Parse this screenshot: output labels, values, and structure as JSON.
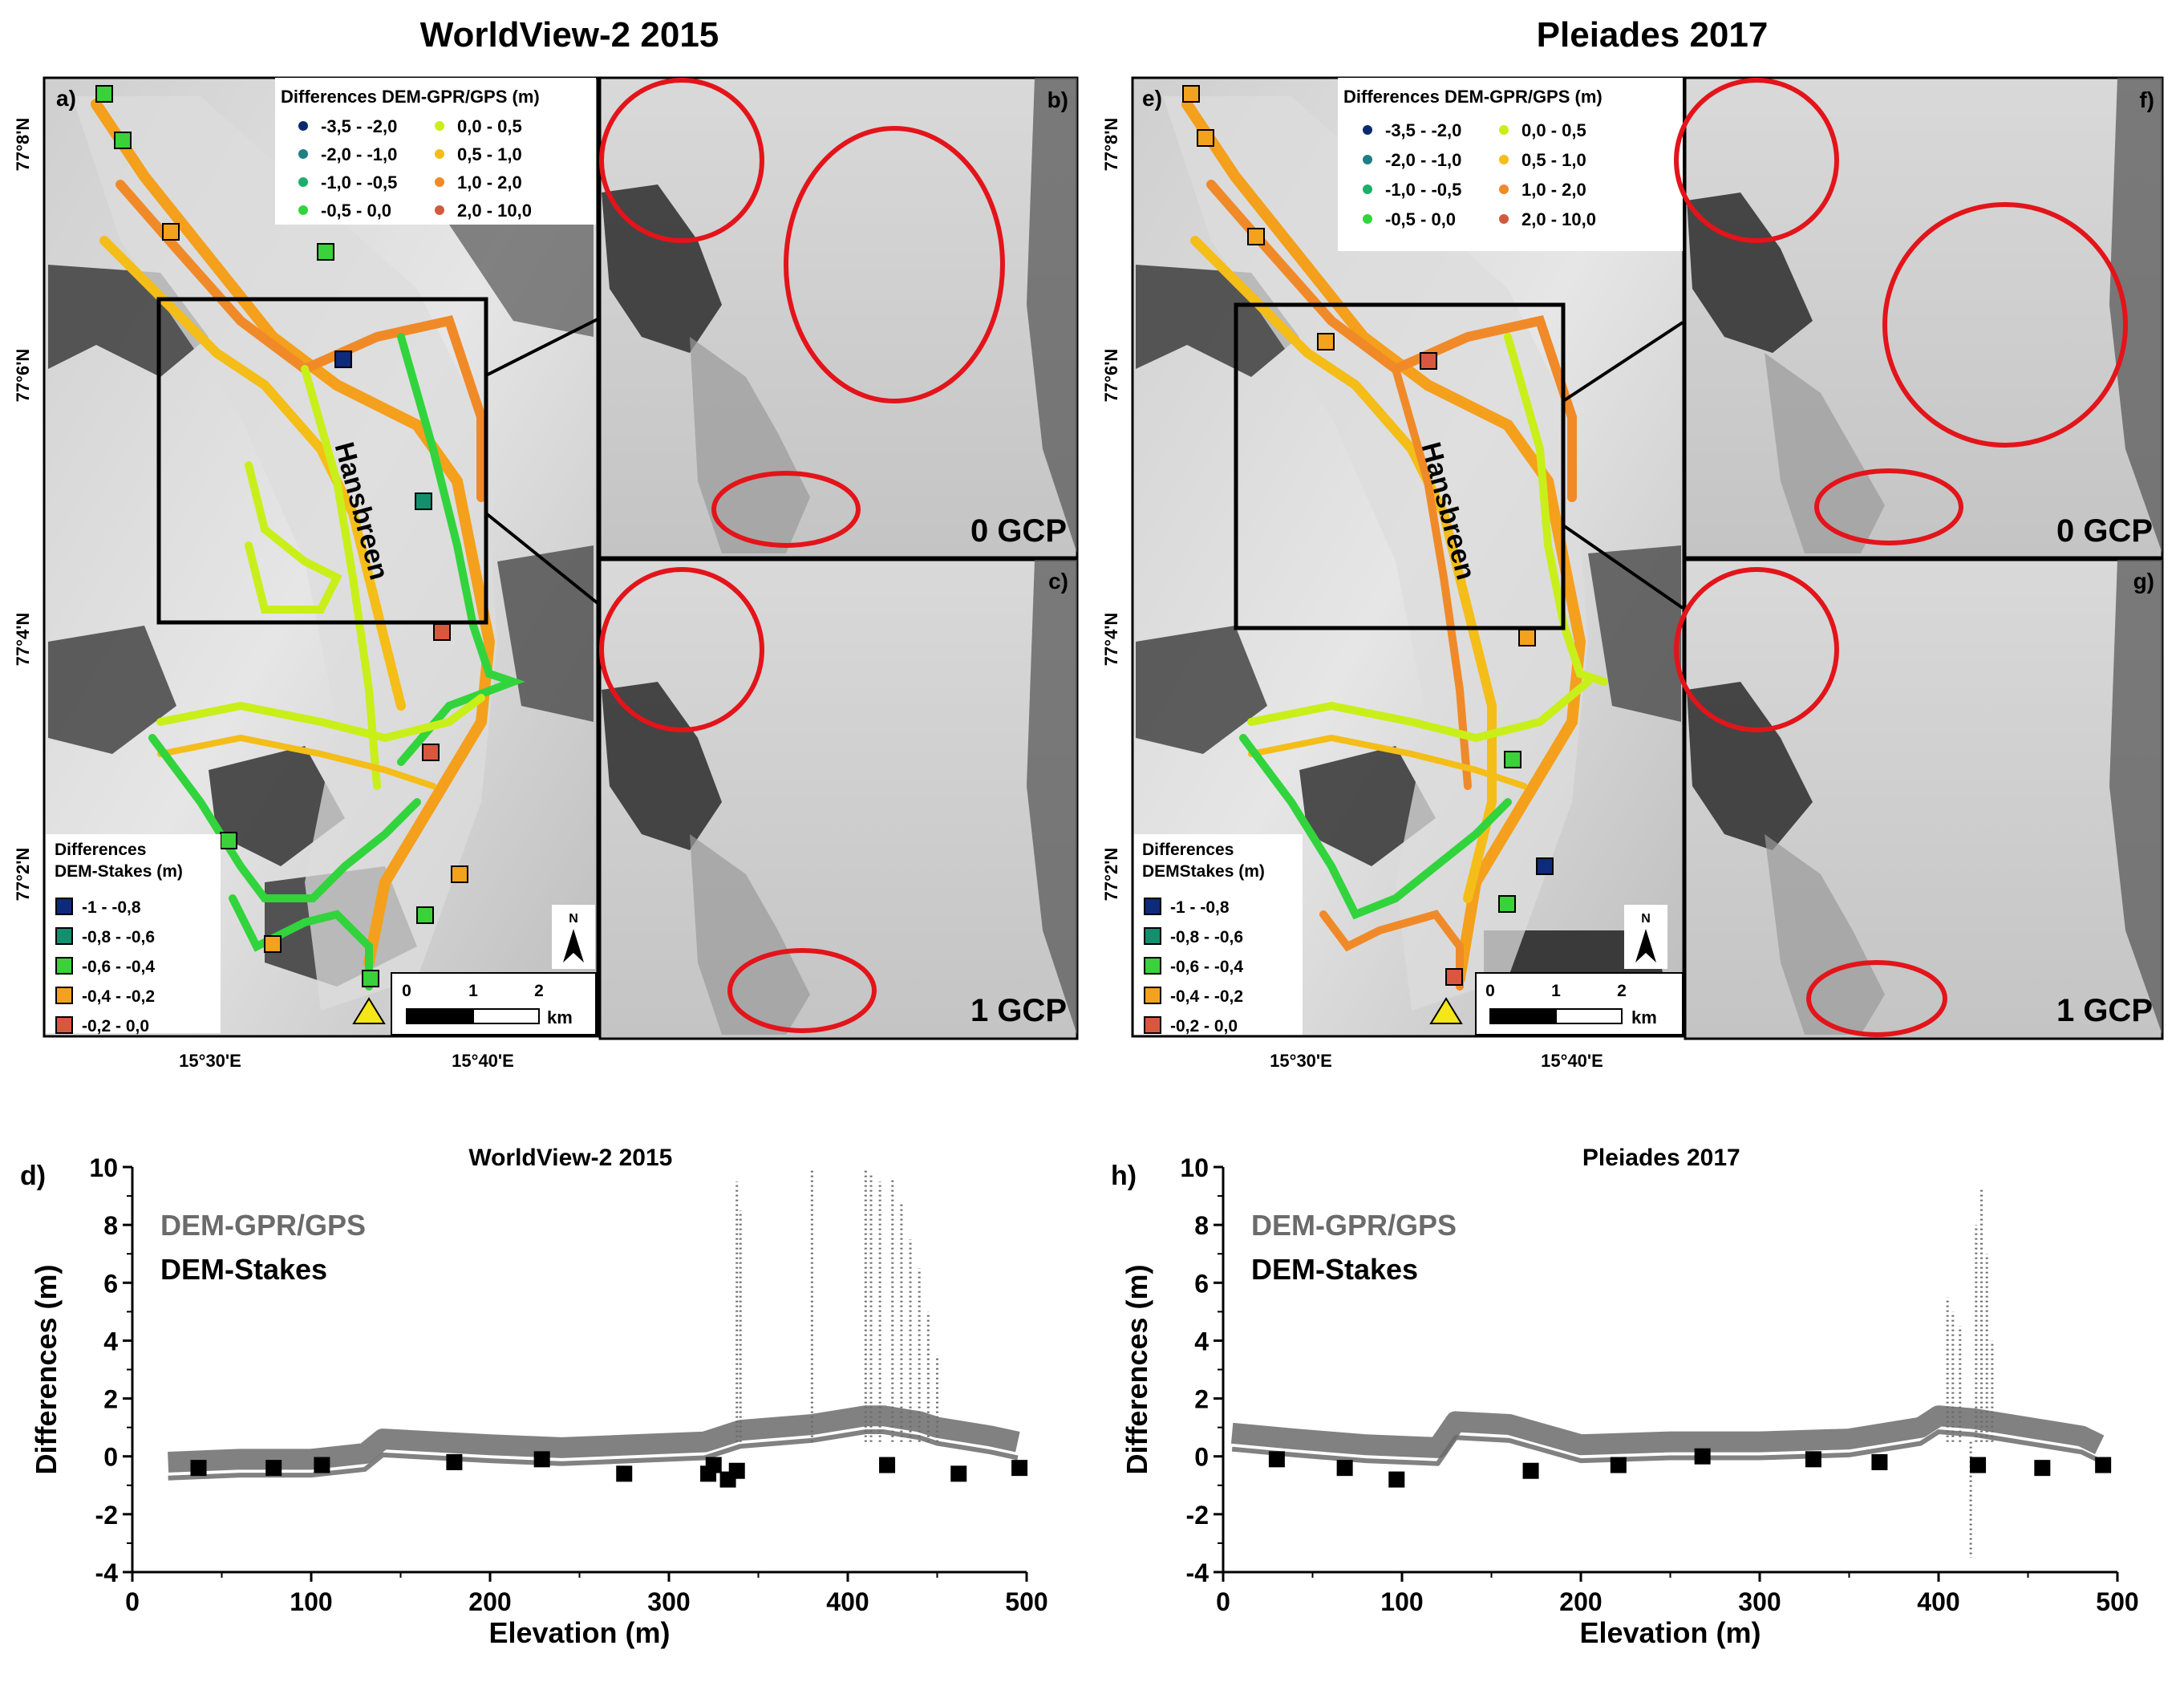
{
  "titles": {
    "left": "WorldView-2 2015",
    "right": "Pleiades 2017"
  },
  "colors": {
    "diff_neg35_neg20": "#0b2a6e",
    "diff_neg20_neg10": "#1f7e86",
    "diff_neg10_neg05": "#1fae6a",
    "diff_neg05_00": "#31d43c",
    "diff_00_05": "#c8ef1a",
    "diff_05_10": "#f4bd18",
    "diff_10_20": "#f08a28",
    "diff_20_100": "#d15a3e",
    "stake_neg1_neg08": "#0e2a7a",
    "stake_neg08_neg06": "#138f6e",
    "stake_neg06_neg04": "#3ad13a",
    "stake_neg04_neg02": "#f2a21c",
    "stake_neg02_00": "#d8573e",
    "circle": "#e3141a",
    "scatter_grey": "#6b6b6b",
    "marker_black": "#000000"
  },
  "maps": {
    "a": {
      "label": "a)",
      "legend_gps_title": "Differences DEM-GPR/GPS (m)",
      "legend_gps_items": [
        "-3,5 - -2,0",
        "-2,0 - -1,0",
        "-1,0 - -0,5",
        "-0,5 - 0,0",
        "0,0 - 0,5",
        "0,5 - 1,0",
        "1,0 - 2,0",
        "2,0 - 10,0"
      ],
      "legend_stakes_title_1": "Differences",
      "legend_stakes_title_2": "DEM-Stakes (m)",
      "legend_stakes_items": [
        "-1 - -0,8",
        "-0,8 - -0,6",
        "-0,6 - -0,4",
        "-0,4 - -0,2",
        "-0,2 - 0,0"
      ],
      "lat_labels": [
        "77°8'N",
        "77°6'N",
        "77°4'N",
        "77°2'N"
      ],
      "lon_labels": [
        "15°30'E",
        "15°40'E"
      ],
      "glacier_name": "Hansbreen",
      "north": "N",
      "scale_ticks": [
        "0",
        "1",
        "2"
      ],
      "scale_unit": "km"
    },
    "b": {
      "label": "b)",
      "gcp": "0 GCP"
    },
    "c": {
      "label": "c)",
      "gcp": "1 GCP"
    },
    "e": {
      "label": "e)",
      "legend_gps_title": "Differences DEM-GPR/GPS (m)",
      "legend_gps_items": [
        "-3,5 - -2,0",
        "-2,0 - -1,0",
        "-1,0 - -0,5",
        "-0,5 - 0,0",
        "0,0 - 0,5",
        "0,5 - 1,0",
        "1,0 - 2,0",
        "2,0 - 10,0"
      ],
      "legend_stakes_title_1": "Differences",
      "legend_stakes_title_2": "DEMStakes (m)",
      "legend_stakes_items": [
        "-1 - -0,8",
        "-0,8 - -0,6",
        "-0,6 - -0,4",
        "-0,4 - -0,2",
        "-0,2 - 0,0"
      ],
      "lat_labels": [
        "77°8'N",
        "77°6'N",
        "77°4'N",
        "77°2'N"
      ],
      "lon_labels": [
        "15°30'E",
        "15°40'E"
      ],
      "glacier_name": "Hansbreen",
      "north": "N",
      "scale_ticks": [
        "0",
        "1",
        "2"
      ],
      "scale_unit": "km"
    },
    "f": {
      "label": "f)",
      "gcp": "0 GCP"
    },
    "g": {
      "label": "g)",
      "gcp": "1 GCP"
    }
  },
  "chart_data": [
    {
      "type": "scatter",
      "panel": "d)",
      "title": "WorldView-2 2015",
      "xlabel": "Elevation (m)",
      "ylabel": "Differences (m)",
      "xlim": [
        0,
        500
      ],
      "ylim": [
        -4,
        10
      ],
      "xticks": [
        0,
        100,
        200,
        300,
        400,
        500
      ],
      "yticks": [
        -4,
        -2,
        0,
        2,
        4,
        6,
        8,
        10
      ],
      "legend": [
        "DEM-GPR/GPS",
        "DEM-Stakes"
      ],
      "series": [
        {
          "name": "DEM-GPR/GPS",
          "x": [
            20,
            60,
            100,
            130,
            140,
            170,
            200,
            240,
            280,
            320,
            340,
            360,
            380,
            400,
            410,
            420,
            430,
            440,
            450,
            460,
            480,
            495
          ],
          "y": [
            -0.2,
            -0.1,
            -0.1,
            0.1,
            0.6,
            0.5,
            0.4,
            0.3,
            0.4,
            0.5,
            0.9,
            1.0,
            1.1,
            1.3,
            1.4,
            1.4,
            1.3,
            1.2,
            1.0,
            0.9,
            0.7,
            0.5
          ]
        },
        {
          "name": "DEM-GPR/GPS spikes",
          "x": [
            338,
            340,
            380,
            410,
            413,
            418,
            425,
            430,
            435,
            440,
            445,
            450
          ],
          "y": [
            9.5,
            8.5,
            9.9,
            9.9,
            9.8,
            9.5,
            9.6,
            8.8,
            7.5,
            6.5,
            5.0,
            3.5
          ]
        },
        {
          "name": "DEM-Stakes",
          "x": [
            37,
            79,
            106,
            180,
            229,
            275,
            322,
            325,
            333,
            338,
            422,
            462,
            496
          ],
          "y": [
            -0.4,
            -0.4,
            -0.3,
            -0.2,
            -0.1,
            -0.6,
            -0.6,
            -0.3,
            -0.8,
            -0.5,
            -0.3,
            -0.6,
            -0.4
          ]
        }
      ]
    },
    {
      "type": "scatter",
      "panel": "h)",
      "title": "Pleiades 2017",
      "xlabel": "Elevation (m)",
      "ylabel": "Differences (m)",
      "xlim": [
        0,
        500
      ],
      "ylim": [
        -4,
        10
      ],
      "xticks": [
        0,
        100,
        200,
        300,
        400,
        500
      ],
      "yticks": [
        -4,
        -2,
        0,
        2,
        4,
        6,
        8,
        10
      ],
      "legend": [
        "DEM-GPR/GPS",
        "DEM-Stakes"
      ],
      "series": [
        {
          "name": "DEM-GPR/GPS",
          "x": [
            5,
            40,
            80,
            120,
            130,
            160,
            200,
            250,
            300,
            350,
            390,
            400,
            420,
            440,
            460,
            480,
            490
          ],
          "y": [
            0.8,
            0.6,
            0.4,
            0.3,
            1.2,
            1.1,
            0.4,
            0.5,
            0.5,
            0.6,
            1.0,
            1.4,
            1.3,
            1.1,
            0.9,
            0.7,
            0.4
          ]
        },
        {
          "name": "DEM-GPR/GPS spikes",
          "x": [
            405,
            408,
            412,
            418,
            421,
            424,
            427,
            430
          ],
          "y": [
            5.5,
            5.0,
            4.5,
            -3.5,
            8.0,
            9.3,
            7.0,
            4.0
          ]
        },
        {
          "name": "DEM-Stakes",
          "x": [
            30,
            68,
            97,
            172,
            221,
            268,
            330,
            367,
            422,
            458,
            492
          ],
          "y": [
            -0.1,
            -0.4,
            -0.8,
            -0.5,
            -0.3,
            0.0,
            -0.1,
            -0.2,
            -0.3,
            -0.4,
            -0.3
          ]
        }
      ]
    }
  ]
}
